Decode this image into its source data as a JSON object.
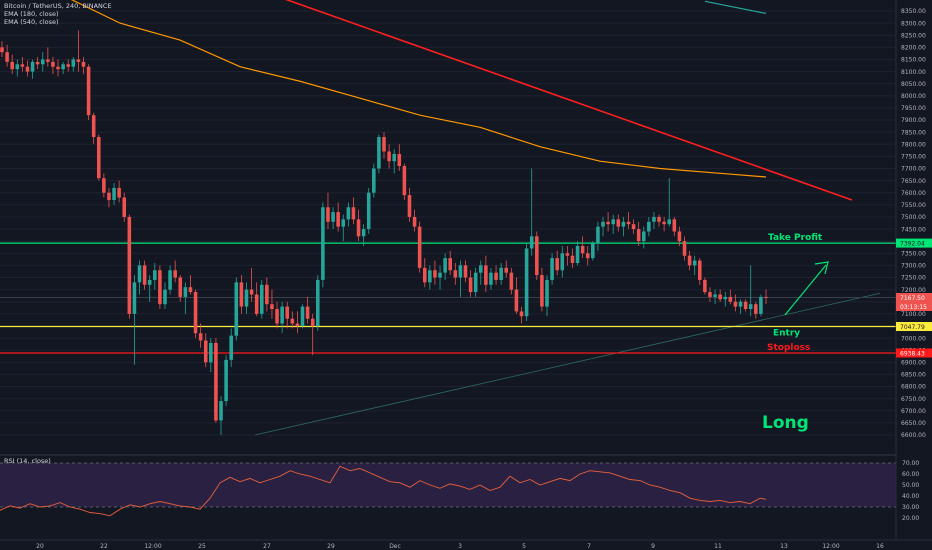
{
  "legend": {
    "symbol": "Bitcoin / TetherUS, 240, BINANCE",
    "ema1": "EMA (180, close)",
    "ema2": "EMA (540, close)"
  },
  "rsi_legend": "RSI (14, close)",
  "annotations": {
    "take_profit": "Take Profit",
    "entry": "Entry",
    "stoploss": "Stoploss",
    "long": "Long"
  },
  "price_tags": {
    "take_profit": "7392.04",
    "current": "7167.50",
    "countdown": "03:13:15",
    "entry": "7047.79",
    "stoploss": "6938.43"
  },
  "colors": {
    "bull": "#26a69a",
    "bear": "#ef5350",
    "take_profit": "#00e676",
    "entry": "#ffeb3b",
    "stoploss": "#ff1a1a",
    "long": "#00e676",
    "ema_orange": "#ff9800",
    "trendline_red": "#ff1f1f",
    "rsi_line": "#e8603c",
    "rsi_band": "#2a2142"
  },
  "chart_data": {
    "type": "candlestick",
    "title": "Bitcoin / TetherUS, 240, BINANCE",
    "price_axis_ticks": [
      "8350.00",
      "8300.00",
      "8250.00",
      "8200.00",
      "8150.00",
      "8100.00",
      "8050.00",
      "8000.00",
      "7950.00",
      "7900.00",
      "7850.00",
      "7800.00",
      "7750.00",
      "7700.00",
      "7650.00",
      "7600.00",
      "7550.00",
      "7500.00",
      "7450.00",
      "7400.00",
      "7350.00",
      "7300.00",
      "7250.00",
      "7200.00",
      "7150.00",
      "7100.00",
      "7050.00",
      "7000.00",
      "6950.00",
      "6900.00",
      "6850.00",
      "6800.00",
      "6750.00",
      "6700.00",
      "6650.00",
      "6600.00"
    ],
    "time_axis_ticks": [
      "20",
      "22",
      "12:00",
      "25",
      "27",
      "29",
      "Dec",
      "3",
      "5",
      "7",
      "9",
      "11",
      "13",
      "12:00",
      "16"
    ],
    "rsi_axis_ticks": [
      "70.00",
      "60.00",
      "50.00",
      "40.00",
      "30.00",
      "20.00"
    ],
    "levels": {
      "take_profit": 7392.04,
      "entry": 7047.79,
      "stoploss": 6938.43,
      "current": 7167.5
    },
    "rsi_band": [
      30,
      70
    ],
    "candles": [
      [
        8200,
        8225,
        8160,
        8180
      ],
      [
        8180,
        8210,
        8120,
        8140
      ],
      [
        8140,
        8170,
        8090,
        8110
      ],
      [
        8110,
        8150,
        8080,
        8130
      ],
      [
        8130,
        8160,
        8100,
        8120
      ],
      [
        8120,
        8145,
        8080,
        8100
      ],
      [
        8100,
        8150,
        8070,
        8140
      ],
      [
        8140,
        8160,
        8110,
        8130
      ],
      [
        8130,
        8180,
        8100,
        8150
      ],
      [
        8150,
        8200,
        8120,
        8140
      ],
      [
        8140,
        8160,
        8090,
        8120
      ],
      [
        8120,
        8150,
        8080,
        8110
      ],
      [
        8110,
        8140,
        8090,
        8130
      ],
      [
        8130,
        8150,
        8100,
        8120
      ],
      [
        8120,
        8160,
        8100,
        8150
      ],
      [
        8150,
        8270,
        8100,
        8140
      ],
      [
        8140,
        8160,
        8090,
        8120
      ],
      [
        8120,
        8130,
        7900,
        7920
      ],
      [
        7920,
        7930,
        7800,
        7830
      ],
      [
        7830,
        7840,
        7650,
        7660
      ],
      [
        7660,
        7680,
        7580,
        7600
      ],
      [
        7600,
        7620,
        7540,
        7570
      ],
      [
        7570,
        7640,
        7550,
        7620
      ],
      [
        7620,
        7650,
        7560,
        7580
      ],
      [
        7580,
        7600,
        7480,
        7500
      ],
      [
        7500,
        7510,
        7080,
        7100
      ],
      [
        7100,
        7260,
        6890,
        7230
      ],
      [
        7230,
        7320,
        7180,
        7300
      ],
      [
        7300,
        7320,
        7200,
        7220
      ],
      [
        7220,
        7260,
        7150,
        7240
      ],
      [
        7240,
        7310,
        7200,
        7280
      ],
      [
        7280,
        7300,
        7120,
        7140
      ],
      [
        7140,
        7230,
        7120,
        7200
      ],
      [
        7200,
        7300,
        7180,
        7280
      ],
      [
        7280,
        7320,
        7230,
        7250
      ],
      [
        7250,
        7260,
        7150,
        7170
      ],
      [
        7170,
        7230,
        7100,
        7210
      ],
      [
        7210,
        7260,
        7180,
        7190
      ],
      [
        7190,
        7200,
        7000,
        7020
      ],
      [
        7020,
        7060,
        6960,
        6990
      ],
      [
        6990,
        7020,
        6880,
        6900
      ],
      [
        6900,
        7000,
        6860,
        6980
      ],
      [
        6980,
        7000,
        6650,
        6660
      ],
      [
        6660,
        6760,
        6600,
        6740
      ],
      [
        6740,
        6930,
        6720,
        6910
      ],
      [
        6910,
        7040,
        6880,
        7010
      ],
      [
        7010,
        7250,
        6990,
        7230
      ],
      [
        7230,
        7260,
        7100,
        7130
      ],
      [
        7130,
        7230,
        7100,
        7200
      ],
      [
        7200,
        7290,
        7150,
        7180
      ],
      [
        7180,
        7230,
        7090,
        7100
      ],
      [
        7100,
        7240,
        7080,
        7220
      ],
      [
        7220,
        7250,
        7110,
        7140
      ],
      [
        7140,
        7200,
        7080,
        7120
      ],
      [
        7120,
        7150,
        7040,
        7060
      ],
      [
        7060,
        7150,
        7020,
        7130
      ],
      [
        7130,
        7150,
        7040,
        7080
      ],
      [
        7080,
        7110,
        7040,
        7060
      ],
      [
        7060,
        7110,
        7020,
        7050
      ],
      [
        7050,
        7140,
        7040,
        7130
      ],
      [
        7130,
        7170,
        7060,
        7080
      ],
      [
        7080,
        7100,
        6930,
        7050
      ],
      [
        7050,
        7260,
        7030,
        7240
      ],
      [
        7240,
        7560,
        7210,
        7540
      ],
      [
        7540,
        7600,
        7450,
        7480
      ],
      [
        7480,
        7540,
        7450,
        7520
      ],
      [
        7520,
        7560,
        7440,
        7460
      ],
      [
        7460,
        7510,
        7400,
        7490
      ],
      [
        7490,
        7560,
        7460,
        7540
      ],
      [
        7540,
        7580,
        7470,
        7490
      ],
      [
        7490,
        7530,
        7400,
        7420
      ],
      [
        7420,
        7470,
        7380,
        7450
      ],
      [
        7450,
        7620,
        7430,
        7600
      ],
      [
        7600,
        7720,
        7580,
        7700
      ],
      [
        7700,
        7840,
        7680,
        7830
      ],
      [
        7830,
        7850,
        7740,
        7770
      ],
      [
        7770,
        7800,
        7700,
        7730
      ],
      [
        7730,
        7780,
        7680,
        7760
      ],
      [
        7760,
        7800,
        7690,
        7710
      ],
      [
        7710,
        7720,
        7570,
        7590
      ],
      [
        7590,
        7620,
        7480,
        7500
      ],
      [
        7500,
        7530,
        7440,
        7460
      ],
      [
        7460,
        7480,
        7270,
        7290
      ],
      [
        7290,
        7330,
        7210,
        7230
      ],
      [
        7230,
        7300,
        7200,
        7280
      ],
      [
        7280,
        7320,
        7220,
        7250
      ],
      [
        7250,
        7300,
        7200,
        7270
      ],
      [
        7270,
        7350,
        7240,
        7330
      ],
      [
        7330,
        7360,
        7260,
        7280
      ],
      [
        7280,
        7310,
        7220,
        7250
      ],
      [
        7250,
        7320,
        7170,
        7300
      ],
      [
        7300,
        7320,
        7230,
        7250
      ],
      [
        7250,
        7280,
        7170,
        7190
      ],
      [
        7190,
        7290,
        7170,
        7270
      ],
      [
        7270,
        7320,
        7220,
        7300
      ],
      [
        7300,
        7340,
        7190,
        7220
      ],
      [
        7220,
        7290,
        7200,
        7270
      ],
      [
        7270,
        7300,
        7220,
        7240
      ],
      [
        7240,
        7310,
        7220,
        7290
      ],
      [
        7290,
        7320,
        7250,
        7270
      ],
      [
        7270,
        7290,
        7180,
        7200
      ],
      [
        7200,
        7250,
        7100,
        7110
      ],
      [
        7110,
        7130,
        7060,
        7090
      ],
      [
        7090,
        7390,
        7070,
        7370
      ],
      [
        7370,
        7700,
        7340,
        7420
      ],
      [
        7420,
        7440,
        7240,
        7260
      ],
      [
        7260,
        7290,
        7110,
        7130
      ],
      [
        7130,
        7260,
        7090,
        7240
      ],
      [
        7240,
        7350,
        7220,
        7330
      ],
      [
        7330,
        7360,
        7260,
        7280
      ],
      [
        7280,
        7380,
        7250,
        7350
      ],
      [
        7350,
        7380,
        7300,
        7340
      ],
      [
        7340,
        7370,
        7290,
        7310
      ],
      [
        7310,
        7400,
        7300,
        7380
      ],
      [
        7380,
        7420,
        7330,
        7350
      ],
      [
        7350,
        7380,
        7300,
        7330
      ],
      [
        7330,
        7400,
        7320,
        7390
      ],
      [
        7390,
        7480,
        7360,
        7460
      ],
      [
        7460,
        7500,
        7420,
        7480
      ],
      [
        7480,
        7520,
        7440,
        7470
      ],
      [
        7470,
        7510,
        7430,
        7490
      ],
      [
        7490,
        7510,
        7440,
        7460
      ],
      [
        7460,
        7500,
        7420,
        7480
      ],
      [
        7480,
        7520,
        7450,
        7470
      ],
      [
        7470,
        7490,
        7430,
        7450
      ],
      [
        7450,
        7480,
        7380,
        7400
      ],
      [
        7400,
        7460,
        7370,
        7440
      ],
      [
        7440,
        7500,
        7420,
        7480
      ],
      [
        7480,
        7520,
        7450,
        7500
      ],
      [
        7500,
        7510,
        7460,
        7480
      ],
      [
        7480,
        7500,
        7440,
        7470
      ],
      [
        7470,
        7660,
        7460,
        7490
      ],
      [
        7490,
        7500,
        7420,
        7440
      ],
      [
        7440,
        7460,
        7380,
        7400
      ],
      [
        7400,
        7420,
        7320,
        7340
      ],
      [
        7340,
        7360,
        7280,
        7300
      ],
      [
        7300,
        7340,
        7260,
        7320
      ],
      [
        7320,
        7330,
        7220,
        7240
      ],
      [
        7240,
        7250,
        7180,
        7190
      ],
      [
        7190,
        7210,
        7150,
        7170
      ],
      [
        7170,
        7200,
        7140,
        7180
      ],
      [
        7180,
        7200,
        7150,
        7160
      ],
      [
        7160,
        7190,
        7130,
        7170
      ],
      [
        7170,
        7200,
        7140,
        7150
      ],
      [
        7150,
        7180,
        7110,
        7130
      ],
      [
        7130,
        7160,
        7100,
        7150
      ],
      [
        7150,
        7160,
        7110,
        7120
      ],
      [
        7120,
        7300,
        7090,
        7140
      ],
      [
        7140,
        7150,
        7080,
        7100
      ],
      [
        7100,
        7180,
        7090,
        7170
      ],
      [
        7170,
        7200,
        7140,
        7167
      ]
    ],
    "ema180": [
      [
        0,
        8520
      ],
      [
        60,
        8420
      ],
      [
        120,
        8300
      ],
      [
        180,
        8230
      ],
      [
        240,
        8120
      ],
      [
        300,
        8060
      ],
      [
        360,
        7990
      ],
      [
        420,
        7920
      ],
      [
        480,
        7870
      ],
      [
        540,
        7790
      ],
      [
        600,
        7730
      ],
      [
        660,
        7700
      ],
      [
        720,
        7680
      ],
      [
        766,
        7665
      ]
    ],
    "ema540_fragment": [
      [
        705,
        8390
      ],
      [
        766,
        8340
      ]
    ],
    "red_trendline": [
      [
        175,
        8560
      ],
      [
        852,
        7570
      ]
    ],
    "rising_trendline": [
      [
        255,
        6600
      ],
      [
        880,
        7185
      ]
    ],
    "rsi": [
      [
        0,
        27
      ],
      [
        10,
        31
      ],
      [
        20,
        29
      ],
      [
        30,
        33
      ],
      [
        40,
        30
      ],
      [
        50,
        31
      ],
      [
        60,
        34
      ],
      [
        70,
        30
      ],
      [
        80,
        28
      ],
      [
        90,
        25
      ],
      [
        100,
        24
      ],
      [
        110,
        22
      ],
      [
        120,
        28
      ],
      [
        130,
        32
      ],
      [
        140,
        30
      ],
      [
        150,
        33
      ],
      [
        160,
        35
      ],
      [
        170,
        33
      ],
      [
        180,
        31
      ],
      [
        190,
        30
      ],
      [
        200,
        28
      ],
      [
        210,
        38
      ],
      [
        220,
        52
      ],
      [
        230,
        57
      ],
      [
        240,
        53
      ],
      [
        250,
        56
      ],
      [
        260,
        52
      ],
      [
        270,
        55
      ],
      [
        280,
        58
      ],
      [
        290,
        63
      ],
      [
        300,
        60
      ],
      [
        310,
        58
      ],
      [
        320,
        55
      ],
      [
        330,
        52
      ],
      [
        340,
        67
      ],
      [
        350,
        63
      ],
      [
        360,
        65
      ],
      [
        370,
        61
      ],
      [
        380,
        57
      ],
      [
        390,
        53
      ],
      [
        400,
        52
      ],
      [
        410,
        48
      ],
      [
        420,
        54
      ],
      [
        430,
        50
      ],
      [
        440,
        47
      ],
      [
        450,
        51
      ],
      [
        460,
        49
      ],
      [
        470,
        46
      ],
      [
        480,
        50
      ],
      [
        490,
        45
      ],
      [
        500,
        48
      ],
      [
        510,
        58
      ],
      [
        520,
        52
      ],
      [
        530,
        55
      ],
      [
        540,
        50
      ],
      [
        550,
        53
      ],
      [
        560,
        56
      ],
      [
        570,
        54
      ],
      [
        580,
        60
      ],
      [
        590,
        63
      ],
      [
        600,
        62
      ],
      [
        610,
        61
      ],
      [
        620,
        58
      ],
      [
        630,
        55
      ],
      [
        640,
        54
      ],
      [
        650,
        50
      ],
      [
        660,
        48
      ],
      [
        670,
        45
      ],
      [
        680,
        43
      ],
      [
        690,
        38
      ],
      [
        700,
        36
      ],
      [
        710,
        35
      ],
      [
        720,
        36
      ],
      [
        730,
        34
      ],
      [
        740,
        35
      ],
      [
        750,
        33
      ],
      [
        760,
        38
      ],
      [
        766,
        37
      ]
    ]
  }
}
